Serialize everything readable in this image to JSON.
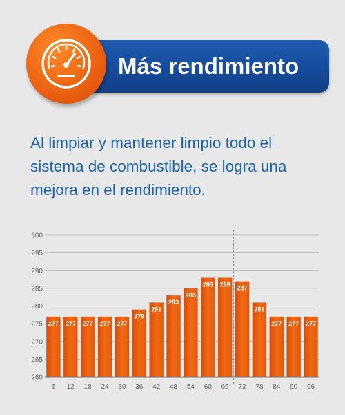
{
  "header": {
    "title": "Más rendimiento",
    "icon": "speedometer-icon",
    "badge_color": "#f06a14",
    "banner_color": "#1a52a3"
  },
  "intro_text": "Al limpiar y mantener limpio todo el sistema de combustible, se logra una mejora en el rendimiento.",
  "chart_data": {
    "type": "bar",
    "categories": [
      "6",
      "12",
      "18",
      "24",
      "30",
      "36",
      "42",
      "48",
      "54",
      "60",
      "66",
      "72",
      "78",
      "84",
      "90",
      "96"
    ],
    "values": [
      277,
      277,
      277,
      277,
      277,
      279,
      281,
      283,
      285,
      288,
      288,
      287,
      281,
      277,
      277,
      277
    ],
    "value_labels": [
      "277",
      "277",
      "277",
      "277",
      "277",
      "279",
      "281",
      "283",
      "285",
      "288",
      "288",
      "287",
      "281",
      "277",
      "277",
      "277"
    ],
    "y_ticks": [
      "260",
      "265",
      "270",
      "275",
      "280",
      "285",
      "290",
      "295",
      "300"
    ],
    "ylim": [
      260,
      300
    ],
    "grid": true,
    "bar_color": "#f06a14",
    "divider_after_category": "66",
    "title": "",
    "xlabel": "",
    "ylabel": ""
  }
}
